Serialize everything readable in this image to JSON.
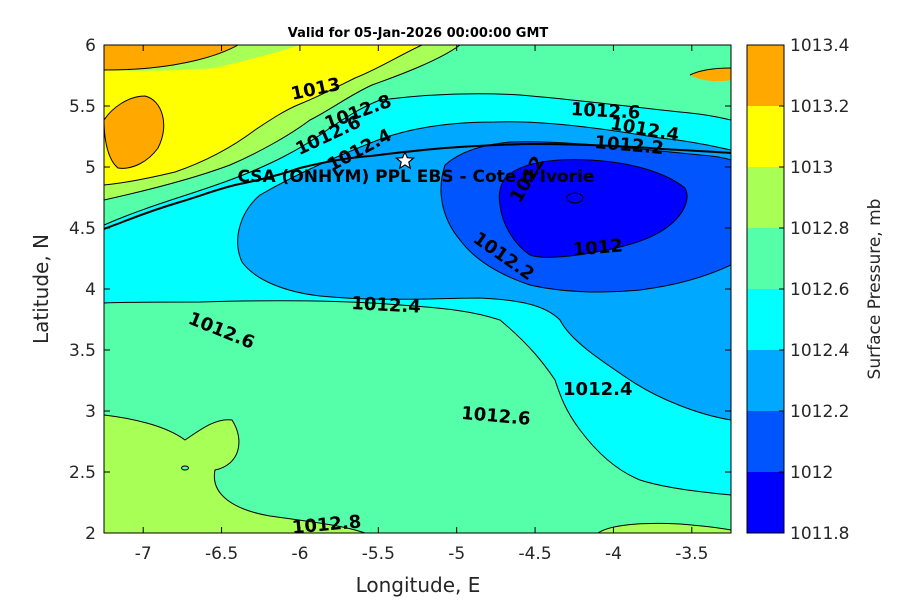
{
  "chart_data": {
    "type": "contour",
    "title": "Valid for 05-Jan-2026 00:00:00 GMT",
    "xlabel": "Longitude, E",
    "ylabel": "Latitude, N",
    "xlim": [
      -7.25,
      -3.25
    ],
    "ylim": [
      2,
      6
    ],
    "xticks": [
      "-7",
      "-6.5",
      "-6",
      "-5.5",
      "-5",
      "-4.5",
      "-4",
      "-3.5"
    ],
    "xtick_values": [
      -7,
      -6.5,
      -6,
      -5.5,
      -5,
      -4.5,
      -4,
      -3.5
    ],
    "yticks": [
      "2",
      "2.5",
      "3",
      "3.5",
      "4",
      "4.5",
      "5",
      "5.5",
      "6"
    ],
    "ytick_values": [
      2,
      2.5,
      3,
      3.5,
      4,
      4.5,
      5,
      5.5,
      6
    ],
    "colorbar": {
      "label": "Surface Pressure, mb",
      "levels": [
        "1011.8",
        "1012",
        "1012.2",
        "1012.4",
        "1012.6",
        "1012.8",
        "1013",
        "1013.2",
        "1013.4"
      ],
      "level_values": [
        1011.8,
        1012.0,
        1012.2,
        1012.4,
        1012.6,
        1012.8,
        1013.0,
        1013.2,
        1013.4
      ],
      "colors": [
        "#0000ff",
        "#0055ff",
        "#00a8ff",
        "#00ffff",
        "#55ffaa",
        "#a8ff55",
        "#ffff00",
        "#ffa800",
        "#ff5500"
      ]
    },
    "contour_labels": [
      {
        "text": "1013",
        "lon": -5.9,
        "lat": 5.64,
        "angle": -12
      },
      {
        "text": "1012.8",
        "lon": -5.63,
        "lat": 5.45,
        "angle": -20
      },
      {
        "text": "1012.6",
        "lon": -5.82,
        "lat": 5.26,
        "angle": -25
      },
      {
        "text": "1012.4",
        "lon": -5.62,
        "lat": 5.14,
        "angle": -28
      },
      {
        "text": "1012.6",
        "lon": -4.05,
        "lat": 5.46,
        "angle": 3
      },
      {
        "text": "1012.4",
        "lon": -3.8,
        "lat": 5.31,
        "angle": 10
      },
      {
        "text": "1012.2",
        "lon": -3.9,
        "lat": 5.18,
        "angle": 5
      },
      {
        "text": "1012",
        "lon": -4.55,
        "lat": 4.9,
        "angle": -60
      },
      {
        "text": "1012.2",
        "lon": -4.7,
        "lat": 4.27,
        "angle": 35
      },
      {
        "text": "1012",
        "lon": -4.1,
        "lat": 4.34,
        "angle": -5
      },
      {
        "text": "1012.4",
        "lon": -5.45,
        "lat": 3.87,
        "angle": 3
      },
      {
        "text": "1012.6",
        "lon": -6.5,
        "lat": 3.66,
        "angle": 22
      },
      {
        "text": "1012.4",
        "lon": -4.1,
        "lat": 3.18,
        "angle": 0
      },
      {
        "text": "1012.6",
        "lon": -4.75,
        "lat": 2.96,
        "angle": 5
      },
      {
        "text": "1012.8",
        "lon": -5.83,
        "lat": 2.07,
        "angle": -5
      }
    ],
    "station": {
      "label": "CSA (ONHYM) PPL EBS  - Cote d'Ivorie",
      "lon": -5.33,
      "lat": 5.05
    }
  }
}
